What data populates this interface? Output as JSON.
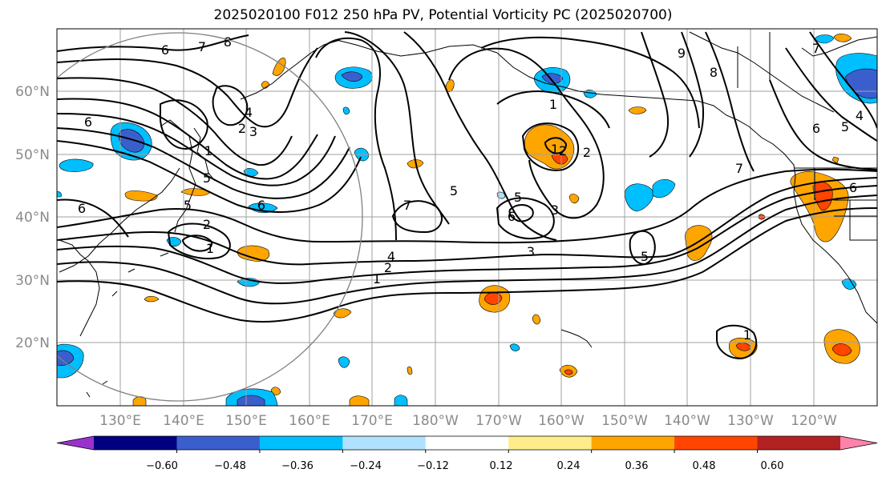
{
  "title": "2025020100 F012 250 hPa PV, Potential Vorticity PC (2025020700)",
  "lat_labels": [
    "60°N",
    "50°N",
    "40°N",
    "30°N",
    "20°N"
  ],
  "lon_labels": [
    "130°E",
    "140°E",
    "150°E",
    "160°E",
    "170°E",
    "180°W",
    "170°W",
    "160°W",
    "150°W",
    "140°W",
    "130°W",
    "120°W"
  ],
  "contour_labels": [
    "6",
    "7",
    "8",
    "6",
    "1",
    "2",
    "3",
    "4",
    "5",
    "1",
    "2",
    "5",
    "6",
    "6",
    "1",
    "2",
    "5",
    "7",
    "5",
    "6",
    "1",
    "2",
    "3",
    "3",
    "4",
    "2",
    "1",
    "7",
    "6",
    "6",
    "5",
    "4",
    "8",
    "9",
    "5",
    "1",
    "7"
  ],
  "colorbar": {
    "ticks": [
      "−0.60",
      "−0.48",
      "−0.36",
      "−0.24",
      "−0.12",
      "0.12",
      "0.24",
      "0.36",
      "0.48",
      "0.60"
    ],
    "colors": [
      "#9932CC",
      "#000080",
      "#3A5FCD",
      "#00BFFF",
      "#B0E2FF",
      "#FFFFFF",
      "#FFEC8B",
      "#FFA500",
      "#FF4500",
      "#B22222",
      "#FF82AB"
    ]
  }
}
